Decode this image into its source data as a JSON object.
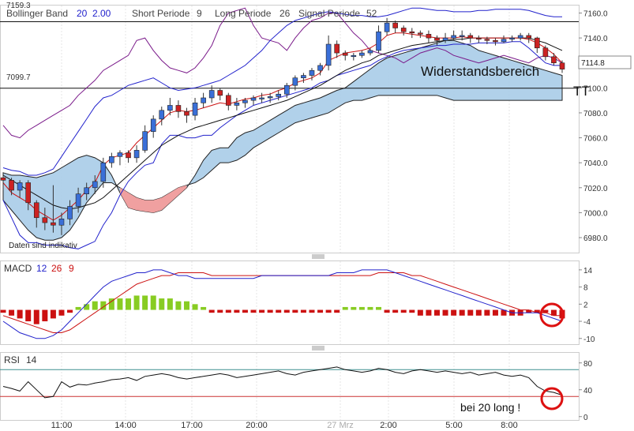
{
  "header": {
    "legend_bb": "Bollinger Band",
    "bb_period": "20",
    "bb_dev": "2.00",
    "legend_short": "Short Periode",
    "short_val": "9",
    "legend_long": "Long Periode",
    "long_val": "26",
    "legend_signal": "Signal Periode",
    "signal_val": "52",
    "top_price_partial": "7159.3"
  },
  "annotations": {
    "resistance_label": "Widerstandsbereich",
    "price_line_label": "7099.7",
    "current_price": "7114.8",
    "disclaimer": "Daten sind indikativ",
    "rsi_note": "bei 20 long !",
    "tt_mark": "TT"
  },
  "macd_title": {
    "name": "MACD",
    "p1": "12",
    "p2": "26",
    "p3": "9"
  },
  "rsi_title": {
    "name": "RSI",
    "p1": "14"
  },
  "colors": {
    "bollinger": "#2222cc",
    "ichimoku_line": "#7a1a8a",
    "ma_red": "#cc1111",
    "ma_black": "#111111",
    "cloud_blue": "#a8cce8",
    "cloud_red": "#f0a0a0",
    "macd_up": "#88cc22",
    "macd_down": "#cc1111",
    "rsi_ref_high": "#3f8f8f",
    "rsi_ref_low": "#cc3333",
    "circle": "#dd1111"
  },
  "chart_data": {
    "type": "line",
    "x_ticks": [
      "11:00",
      "14:00",
      "17:00",
      "20:00",
      "27 Mrz",
      "2:00",
      "5:00",
      "8:00"
    ],
    "price_panel": {
      "y_ticks": [
        7160.0,
        7140.0,
        7120.0,
        7100.0,
        7080.0,
        7060.0,
        7040.0,
        7020.0,
        7000.0,
        6980.0
      ],
      "y_tick_labels": [
        "7160.0",
        "7140.0",
        "7120.0",
        "7100.0",
        "7080.0",
        "7060.0",
        "7040.0",
        "7020.0",
        "7000.0",
        "6980.0"
      ],
      "ylim": [
        6968,
        7166
      ],
      "horizontal_lines": [
        7153,
        7099.7
      ],
      "current_price": 7114.8,
      "close": [
        7026,
        7018,
        7024,
        7008,
        6996,
        6992,
        6990,
        6995,
        7005,
        7015,
        7020,
        7025,
        7040,
        7045,
        7048,
        7044,
        7050,
        7065,
        7075,
        7082,
        7086,
        7081,
        7078,
        7088,
        7092,
        7098,
        7094,
        7086,
        7088,
        7090,
        7092,
        7092,
        7093,
        7095,
        7102,
        7108,
        7110,
        7114,
        7118,
        7135,
        7128,
        7126,
        7126,
        7128,
        7130,
        7145,
        7152,
        7148,
        7145,
        7144,
        7143,
        7140,
        7138,
        7140,
        7142,
        7142,
        7140,
        7139,
        7138,
        7137,
        7139,
        7140,
        7142,
        7140,
        7132,
        7125,
        7120,
        7115
      ],
      "bollinger_upper": [
        7036,
        7034,
        7033,
        7030,
        7030,
        7032,
        7035,
        7045,
        7055,
        7065,
        7075,
        7085,
        7092,
        7094,
        7098,
        7102,
        7104,
        7106,
        7108,
        7104,
        7100,
        7098,
        7099,
        7100,
        7102,
        7104,
        7106,
        7110,
        7114,
        7118,
        7124,
        7130,
        7138,
        7144,
        7150,
        7154,
        7156,
        7158,
        7160,
        7161,
        7160,
        7159,
        7158,
        7158,
        7157,
        7157,
        7158,
        7160,
        7162,
        7164,
        7164,
        7163,
        7162,
        7162,
        7161,
        7161,
        7161,
        7162,
        7162,
        7163,
        7163,
        7163,
        7163,
        7162,
        7160,
        7158,
        7157,
        7157
      ],
      "bollinger_lower": [
        7010,
        6996,
        6982,
        6976,
        6976,
        6974,
        6974,
        6974,
        6972,
        6971,
        6974,
        6977,
        6990,
        7000,
        7014,
        7025,
        7032,
        7038,
        7040,
        7055,
        7062,
        7062,
        7060,
        7060,
        7062,
        7062,
        7068,
        7073,
        7078,
        7082,
        7086,
        7088,
        7090,
        7092,
        7094,
        7096,
        7098,
        7100,
        7104,
        7106,
        7110,
        7112,
        7114,
        7116,
        7118,
        7122,
        7125,
        7128,
        7130,
        7131,
        7132,
        7133,
        7134,
        7134,
        7135,
        7135,
        7135,
        7136,
        7136,
        7136,
        7136,
        7137,
        7137,
        7132,
        7126,
        7120,
        7118,
        7118
      ],
      "ma_red": [
        7024,
        7016,
        7012,
        7008,
        7002,
        6998,
        6994,
        6998,
        7004,
        7010,
        7018,
        7024,
        7038,
        7044,
        7046,
        7048,
        7056,
        7062,
        7068,
        7074,
        7080,
        7082,
        7081,
        7082,
        7084,
        7086,
        7088,
        7087,
        7089,
        7091,
        7092,
        7094,
        7095,
        7098,
        7100,
        7104,
        7106,
        7108,
        7112,
        7122,
        7125,
        7128,
        7129,
        7130,
        7132,
        7136,
        7142,
        7144,
        7144,
        7143,
        7142,
        7141,
        7140,
        7140,
        7140,
        7141,
        7140,
        7140,
        7140,
        7140,
        7140,
        7140,
        7140,
        7139,
        7136,
        7132,
        7127,
        7120
      ],
      "ma_black": [
        7030,
        7026,
        7022,
        7018,
        7014,
        7010,
        7006,
        7004,
        7003,
        7004,
        7006,
        7008,
        7012,
        7018,
        7024,
        7030,
        7036,
        7042,
        7048,
        7054,
        7058,
        7062,
        7065,
        7068,
        7070,
        7072,
        7074,
        7076,
        7078,
        7080,
        7082,
        7084,
        7086,
        7088,
        7090,
        7093,
        7096,
        7099,
        7102,
        7106,
        7110,
        7114,
        7117,
        7120,
        7122,
        7126,
        7128,
        7130,
        7132,
        7134,
        7135,
        7136,
        7137,
        7138,
        7139,
        7139,
        7140,
        7140,
        7140,
        7140,
        7140,
        7140,
        7140,
        7140,
        7138,
        7136,
        7133,
        7130
      ],
      "ichimoku_line": [
        7070,
        7062,
        7060,
        7066,
        7070,
        7074,
        7078,
        7082,
        7086,
        7094,
        7100,
        7106,
        7114,
        7118,
        7122,
        7126,
        7138,
        7140,
        7130,
        7122,
        7116,
        7114,
        7112,
        7116,
        7124,
        7134,
        7150,
        7160,
        7162,
        7164,
        7150,
        7140,
        7138,
        7136,
        7130,
        7140,
        7148,
        7154,
        7156,
        7160,
        7160,
        7152,
        7144,
        7138,
        7130,
        7128,
        7126,
        7124,
        7120,
        7124,
        7128,
        7130,
        7132,
        7130,
        7126,
        7124,
        7122,
        7120,
        7122,
        7124,
        7126,
        7124,
        7122,
        7120,
        7124,
        7126,
        7124,
        7120
      ],
      "cloud_upper": [
        7032,
        7030,
        7030,
        7029,
        7028,
        7030,
        7032,
        7036,
        7040,
        7044,
        7046,
        7044,
        7040,
        7030,
        7016,
        7004,
        7002,
        7001,
        7000,
        7002,
        7008,
        7014,
        7020,
        7030,
        7042,
        7050,
        7052,
        7052,
        7060,
        7064,
        7066,
        7070,
        7074,
        7078,
        7082,
        7086,
        7088,
        7090,
        7092,
        7095,
        7098,
        7100,
        7105,
        7110,
        7115,
        7120,
        7124,
        7126,
        7128,
        7130,
        7132,
        7134,
        7136,
        7138,
        7138,
        7136,
        7134,
        7130,
        7128,
        7126,
        7124,
        7122,
        7120,
        7118,
        7116,
        7114,
        7112,
        7110
      ],
      "cloud_lower": [
        7010,
        7002,
        6994,
        6986,
        6980,
        6978,
        6978,
        6980,
        6986,
        6996,
        7008,
        7016,
        7024,
        7024,
        7020,
        7016,
        7012,
        7010,
        7010,
        7012,
        7016,
        7020,
        7022,
        7024,
        7028,
        7034,
        7040,
        7040,
        7042,
        7046,
        7052,
        7056,
        7060,
        7064,
        7068,
        7072,
        7074,
        7076,
        7078,
        7080,
        7084,
        7088,
        7090,
        7090,
        7092,
        7094,
        7094,
        7094,
        7094,
        7094,
        7094,
        7094,
        7094,
        7092,
        7090,
        7090,
        7090,
        7090,
        7090,
        7090,
        7090,
        7090,
        7090,
        7090,
        7090,
        7090,
        7090,
        7090
      ]
    },
    "macd_panel": {
      "y_ticks": [
        14,
        8,
        2,
        -4,
        -10
      ],
      "y_tick_labels": [
        "14",
        "8",
        "2",
        "-4",
        "-10"
      ],
      "ylim": [
        -12,
        17
      ],
      "histogram": [
        -1,
        -2,
        -3,
        -4,
        -5,
        -4,
        -3,
        -2,
        -1,
        1,
        2,
        3,
        3,
        4,
        4,
        4,
        5,
        5,
        5,
        4,
        4,
        3,
        3,
        2,
        1,
        -1,
        -1,
        -1,
        -1,
        -1,
        -1,
        -1,
        -1,
        -1,
        -1,
        -1,
        -1,
        -1,
        -1,
        -1,
        -1,
        1,
        1,
        1,
        1,
        1,
        -1,
        -1,
        -1,
        -1,
        -2,
        -2,
        -2,
        -2,
        -2,
        -2,
        -2,
        -2,
        -2,
        -2,
        -2,
        -2,
        -2,
        -1,
        -1,
        -1,
        -2,
        -3
      ],
      "macd_line": [
        -4,
        -6,
        -8,
        -9,
        -10,
        -10,
        -9,
        -7,
        -4,
        -1,
        2,
        5,
        8,
        10,
        11,
        12,
        13,
        13,
        14,
        14,
        13,
        12,
        12,
        11,
        11,
        11,
        11,
        11,
        11,
        11,
        11,
        12,
        12,
        12,
        12,
        12,
        12,
        12,
        12,
        12,
        13,
        13,
        13,
        14,
        14,
        14,
        14,
        13,
        12,
        11,
        10,
        9,
        8,
        7,
        6,
        5,
        4,
        3,
        2,
        1,
        0,
        -1,
        -1,
        -1,
        -1,
        -2,
        -3,
        -4
      ],
      "signal_line": [
        -2,
        -3,
        -4,
        -5,
        -6,
        -7,
        -8,
        -8,
        -7,
        -5,
        -3,
        -1,
        1,
        3,
        5,
        7,
        9,
        10,
        11,
        12,
        12,
        13,
        13,
        13,
        13,
        12,
        12,
        12,
        12,
        12,
        12,
        12,
        12,
        12,
        12,
        12,
        12,
        12,
        12,
        12,
        12,
        12,
        12,
        12,
        12,
        13,
        13,
        13,
        13,
        12,
        12,
        11,
        10,
        9,
        8,
        7,
        6,
        5,
        4,
        3,
        2,
        1,
        0,
        0,
        -1,
        -1,
        -2,
        -2
      ]
    },
    "rsi_panel": {
      "y_ticks": [
        80,
        40,
        0
      ],
      "y_tick_labels": [
        "80",
        "40",
        "0"
      ],
      "ylim": [
        -5,
        95
      ],
      "ref_lines": [
        70,
        30
      ],
      "values": [
        45,
        42,
        38,
        52,
        40,
        28,
        30,
        52,
        44,
        48,
        47,
        50,
        52,
        55,
        56,
        58,
        54,
        60,
        62,
        64,
        62,
        58,
        56,
        58,
        60,
        62,
        64,
        62,
        58,
        60,
        62,
        64,
        66,
        68,
        64,
        62,
        66,
        68,
        70,
        72,
        74,
        70,
        68,
        66,
        68,
        72,
        70,
        66,
        64,
        68,
        70,
        68,
        66,
        68,
        66,
        64,
        66,
        62,
        64,
        66,
        62,
        60,
        62,
        58,
        45,
        38,
        36,
        32
      ]
    },
    "candles": [
      {
        "o": 7028,
        "h": 7030,
        "l": 7018,
        "c": 7026
      },
      {
        "o": 7026,
        "h": 7028,
        "l": 7014,
        "c": 7018
      },
      {
        "o": 7018,
        "h": 7026,
        "l": 7012,
        "c": 7024
      },
      {
        "o": 7024,
        "h": 7026,
        "l": 7002,
        "c": 7008
      },
      {
        "o": 7008,
        "h": 7010,
        "l": 6988,
        "c": 6996
      },
      {
        "o": 6996,
        "h": 7004,
        "l": 6986,
        "c": 6992
      },
      {
        "o": 6992,
        "h": 7022,
        "l": 6984,
        "c": 6990
      },
      {
        "o": 6990,
        "h": 7000,
        "l": 6982,
        "c": 6995
      },
      {
        "o": 6995,
        "h": 7010,
        "l": 6990,
        "c": 7005
      },
      {
        "o": 7005,
        "h": 7020,
        "l": 7000,
        "c": 7015
      },
      {
        "o": 7015,
        "h": 7024,
        "l": 7010,
        "c": 7020
      },
      {
        "o": 7020,
        "h": 7030,
        "l": 7015,
        "c": 7025
      },
      {
        "o": 7025,
        "h": 7044,
        "l": 7020,
        "c": 7040
      },
      {
        "o": 7040,
        "h": 7048,
        "l": 7036,
        "c": 7045
      },
      {
        "o": 7045,
        "h": 7050,
        "l": 7038,
        "c": 7048
      },
      {
        "o": 7048,
        "h": 7050,
        "l": 7040,
        "c": 7044
      },
      {
        "o": 7044,
        "h": 7054,
        "l": 7040,
        "c": 7050
      },
      {
        "o": 7050,
        "h": 7070,
        "l": 7048,
        "c": 7065
      },
      {
        "o": 7065,
        "h": 7078,
        "l": 7060,
        "c": 7075
      },
      {
        "o": 7075,
        "h": 7085,
        "l": 7070,
        "c": 7082
      },
      {
        "o": 7082,
        "h": 7092,
        "l": 7078,
        "c": 7086
      },
      {
        "o": 7086,
        "h": 7090,
        "l": 7076,
        "c": 7081
      },
      {
        "o": 7081,
        "h": 7084,
        "l": 7072,
        "c": 7078
      },
      {
        "o": 7078,
        "h": 7092,
        "l": 7074,
        "c": 7088
      },
      {
        "o": 7088,
        "h": 7096,
        "l": 7084,
        "c": 7092
      },
      {
        "o": 7092,
        "h": 7102,
        "l": 7088,
        "c": 7098
      },
      {
        "o": 7098,
        "h": 7100,
        "l": 7090,
        "c": 7094
      },
      {
        "o": 7094,
        "h": 7096,
        "l": 7082,
        "c": 7086
      },
      {
        "o": 7086,
        "h": 7092,
        "l": 7082,
        "c": 7088
      },
      {
        "o": 7088,
        "h": 7092,
        "l": 7084,
        "c": 7090
      },
      {
        "o": 7090,
        "h": 7094,
        "l": 7086,
        "c": 7092
      },
      {
        "o": 7092,
        "h": 7096,
        "l": 7088,
        "c": 7092
      },
      {
        "o": 7092,
        "h": 7096,
        "l": 7088,
        "c": 7093
      },
      {
        "o": 7093,
        "h": 7098,
        "l": 7090,
        "c": 7095
      },
      {
        "o": 7095,
        "h": 7104,
        "l": 7092,
        "c": 7102
      },
      {
        "o": 7102,
        "h": 7110,
        "l": 7098,
        "c": 7108
      },
      {
        "o": 7108,
        "h": 7112,
        "l": 7104,
        "c": 7110
      },
      {
        "o": 7110,
        "h": 7116,
        "l": 7106,
        "c": 7114
      },
      {
        "o": 7114,
        "h": 7120,
        "l": 7110,
        "c": 7118
      },
      {
        "o": 7118,
        "h": 7142,
        "l": 7114,
        "c": 7135
      },
      {
        "o": 7135,
        "h": 7138,
        "l": 7124,
        "c": 7128
      },
      {
        "o": 7128,
        "h": 7130,
        "l": 7122,
        "c": 7126
      },
      {
        "o": 7126,
        "h": 7128,
        "l": 7122,
        "c": 7126
      },
      {
        "o": 7126,
        "h": 7130,
        "l": 7124,
        "c": 7128
      },
      {
        "o": 7128,
        "h": 7132,
        "l": 7126,
        "c": 7130
      },
      {
        "o": 7130,
        "h": 7150,
        "l": 7128,
        "c": 7145
      },
      {
        "o": 7145,
        "h": 7156,
        "l": 7142,
        "c": 7152
      },
      {
        "o": 7152,
        "h": 7154,
        "l": 7144,
        "c": 7148
      },
      {
        "o": 7148,
        "h": 7150,
        "l": 7142,
        "c": 7145
      },
      {
        "o": 7145,
        "h": 7148,
        "l": 7140,
        "c": 7144
      },
      {
        "o": 7144,
        "h": 7146,
        "l": 7140,
        "c": 7143
      },
      {
        "o": 7143,
        "h": 7146,
        "l": 7136,
        "c": 7140
      },
      {
        "o": 7140,
        "h": 7142,
        "l": 7134,
        "c": 7138
      },
      {
        "o": 7138,
        "h": 7144,
        "l": 7136,
        "c": 7140
      },
      {
        "o": 7140,
        "h": 7146,
        "l": 7138,
        "c": 7142
      },
      {
        "o": 7142,
        "h": 7146,
        "l": 7138,
        "c": 7142
      },
      {
        "o": 7142,
        "h": 7144,
        "l": 7136,
        "c": 7140
      },
      {
        "o": 7140,
        "h": 7142,
        "l": 7136,
        "c": 7139
      },
      {
        "o": 7139,
        "h": 7141,
        "l": 7135,
        "c": 7138
      },
      {
        "o": 7138,
        "h": 7140,
        "l": 7134,
        "c": 7137
      },
      {
        "o": 7137,
        "h": 7142,
        "l": 7136,
        "c": 7139
      },
      {
        "o": 7139,
        "h": 7142,
        "l": 7137,
        "c": 7140
      },
      {
        "o": 7140,
        "h": 7144,
        "l": 7138,
        "c": 7142
      },
      {
        "o": 7142,
        "h": 7144,
        "l": 7136,
        "c": 7140
      },
      {
        "o": 7140,
        "h": 7141,
        "l": 7128,
        "c": 7132
      },
      {
        "o": 7132,
        "h": 7134,
        "l": 7122,
        "c": 7125
      },
      {
        "o": 7125,
        "h": 7128,
        "l": 7118,
        "c": 7120
      },
      {
        "o": 7120,
        "h": 7122,
        "l": 7112,
        "c": 7115
      }
    ]
  }
}
